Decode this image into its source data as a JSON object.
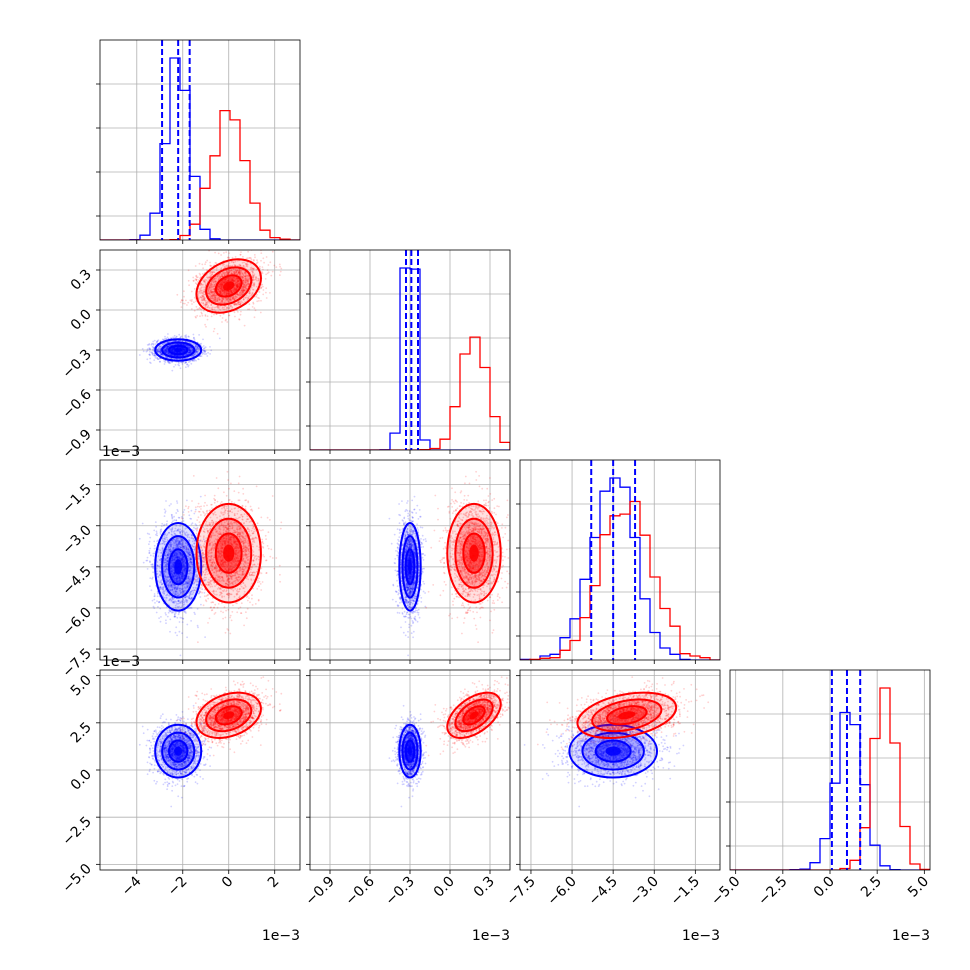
{
  "colors": {
    "blue": "#0000ff",
    "red": "#ff0000",
    "grid": "#b0b0b0"
  },
  "chart_data": {
    "type": "corner",
    "grid": true,
    "series": [
      {
        "color": "#0000ff",
        "dims": [
          {
            "mean": -0.0022,
            "sd": 0.0005
          },
          {
            "mean": -0.0003,
            "sd": 4e-05
          },
          {
            "mean": -0.0045,
            "sd": 0.0008
          },
          {
            "mean": 0.001,
            "sd": 0.0007
          }
        ],
        "quantiles": [
          [
            -0.0029,
            -0.0022,
            -0.0017
          ],
          [
            -0.00033,
            -0.00029,
            -0.00024
          ],
          [
            -0.0053,
            -0.0045,
            -0.0037
          ],
          [
            0.0001,
            0.0009,
            0.0016
          ]
        ]
      },
      {
        "color": "#ff0000",
        "dims": [
          {
            "mean": 0.0,
            "sd": 0.0007
          },
          {
            "mean": 0.00018,
            "sd": 0.0001
          },
          {
            "mean": -0.004,
            "sd": 0.0009
          },
          {
            "mean": 0.0029,
            "sd": 0.0006
          }
        ]
      }
    ],
    "axes": [
      {
        "range": [
          -0.0056,
          0.0031
        ],
        "ticks": [
          -4,
          -2,
          0,
          2
        ],
        "tick_labels": [
          "−4",
          "−2",
          "0",
          "2"
        ],
        "offset": "1e−3"
      },
      {
        "range": [
          -0.00105,
          0.00045
        ],
        "ticks": [
          -0.9,
          -0.6,
          -0.3,
          0.0,
          0.3
        ],
        "tick_labels": [
          "−0.9",
          "−0.6",
          "−0.3",
          "0.0",
          "0.3"
        ],
        "offset": "1e−3"
      },
      {
        "range": [
          -0.0079,
          -0.0006
        ],
        "ticks": [
          -7.5,
          -6.0,
          -4.5,
          -3.0,
          -1.5
        ],
        "tick_labels": [
          "−7.5",
          "−6.0",
          "−4.5",
          "−3.0",
          "−1.5"
        ],
        "offset": "1e−3"
      },
      {
        "range": [
          -0.0053,
          0.0053
        ],
        "ticks": [
          -5.0,
          -2.5,
          0.0,
          2.5,
          5.0
        ],
        "tick_labels": [
          "−5.0",
          "−2.5",
          "0.0",
          "2.5",
          "5.0"
        ],
        "offset": "1e−3"
      }
    ]
  }
}
